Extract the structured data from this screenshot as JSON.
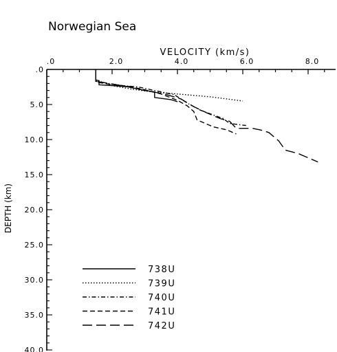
{
  "chart_data": {
    "type": "line",
    "title": "Norwegian Sea",
    "xlabel": "VELOCITY (km/s)",
    "ylabel": "DEPTH (km)",
    "x_axis_position": "top",
    "y_axis_inverted": true,
    "xlim": [
      0,
      8.5
    ],
    "ylim": [
      0,
      40
    ],
    "x_ticks": [
      0,
      2,
      4,
      6,
      8
    ],
    "x_tick_labels": [
      ".0",
      "2.0",
      "4.0",
      "6.0",
      "8.0"
    ],
    "y_ticks": [
      0,
      5,
      10,
      15,
      20,
      25,
      30,
      35,
      40
    ],
    "y_tick_labels": [
      ".0",
      "5.0",
      "10.0",
      "15.0",
      "20.0",
      "25.0",
      "30.0",
      "35.0",
      "40.0"
    ],
    "grid": false,
    "legend_position": "bottom-left",
    "series": [
      {
        "name": "738U",
        "dash": "solid",
        "points": [
          [
            1.5,
            0.0
          ],
          [
            1.5,
            1.5
          ],
          [
            1.6,
            1.6
          ],
          [
            1.6,
            2.2
          ],
          [
            2.0,
            2.3
          ],
          [
            2.3,
            2.4
          ],
          [
            2.5,
            2.5
          ],
          [
            3.0,
            3.0
          ],
          [
            3.3,
            3.2
          ],
          [
            3.3,
            4.0
          ],
          [
            3.8,
            4.3
          ],
          [
            4.0,
            4.6
          ]
        ]
      },
      {
        "name": "739U",
        "dash": "dotted",
        "points": [
          [
            1.5,
            0.0
          ],
          [
            1.5,
            1.6
          ],
          [
            1.7,
            1.8
          ],
          [
            2.1,
            2.4
          ],
          [
            2.6,
            2.8
          ],
          [
            3.2,
            3.2
          ],
          [
            4.0,
            3.5
          ],
          [
            5.0,
            3.9
          ],
          [
            6.0,
            4.5
          ]
        ]
      },
      {
        "name": "740U",
        "dash": "dash-dot",
        "points": [
          [
            1.5,
            0.0
          ],
          [
            1.5,
            1.7
          ],
          [
            1.9,
            2.0
          ],
          [
            2.3,
            2.3
          ],
          [
            2.8,
            2.5
          ],
          [
            3.3,
            3.0
          ],
          [
            3.9,
            3.6
          ],
          [
            4.3,
            4.8
          ],
          [
            4.7,
            5.8
          ],
          [
            5.1,
            6.5
          ],
          [
            5.4,
            7.0
          ],
          [
            5.6,
            7.7
          ],
          [
            6.1,
            8.0
          ]
        ]
      },
      {
        "name": "741U",
        "dash": "dashed",
        "points": [
          [
            1.5,
            0.0
          ],
          [
            1.5,
            1.8
          ],
          [
            1.9,
            2.1
          ],
          [
            2.5,
            2.4
          ],
          [
            3.0,
            2.9
          ],
          [
            3.5,
            3.5
          ],
          [
            4.0,
            4.4
          ],
          [
            4.3,
            5.2
          ],
          [
            4.5,
            6.0
          ],
          [
            4.6,
            7.2
          ],
          [
            5.1,
            8.2
          ],
          [
            5.5,
            8.6
          ],
          [
            5.8,
            9.2
          ]
        ]
      },
      {
        "name": "742U",
        "dash": "long-dash",
        "points": [
          [
            1.5,
            0.0
          ],
          [
            1.5,
            1.7
          ],
          [
            1.9,
            2.0
          ],
          [
            2.4,
            2.4
          ],
          [
            3.0,
            3.0
          ],
          [
            3.6,
            3.5
          ],
          [
            4.1,
            4.2
          ],
          [
            4.5,
            5.3
          ],
          [
            4.9,
            6.2
          ],
          [
            5.3,
            7.0
          ],
          [
            5.6,
            7.4
          ],
          [
            5.8,
            8.4
          ],
          [
            6.3,
            8.4
          ],
          [
            6.6,
            8.7
          ],
          [
            6.8,
            9.0
          ],
          [
            7.1,
            10.2
          ],
          [
            7.3,
            11.5
          ],
          [
            7.7,
            12.0
          ],
          [
            8.3,
            13.2
          ]
        ]
      }
    ]
  }
}
